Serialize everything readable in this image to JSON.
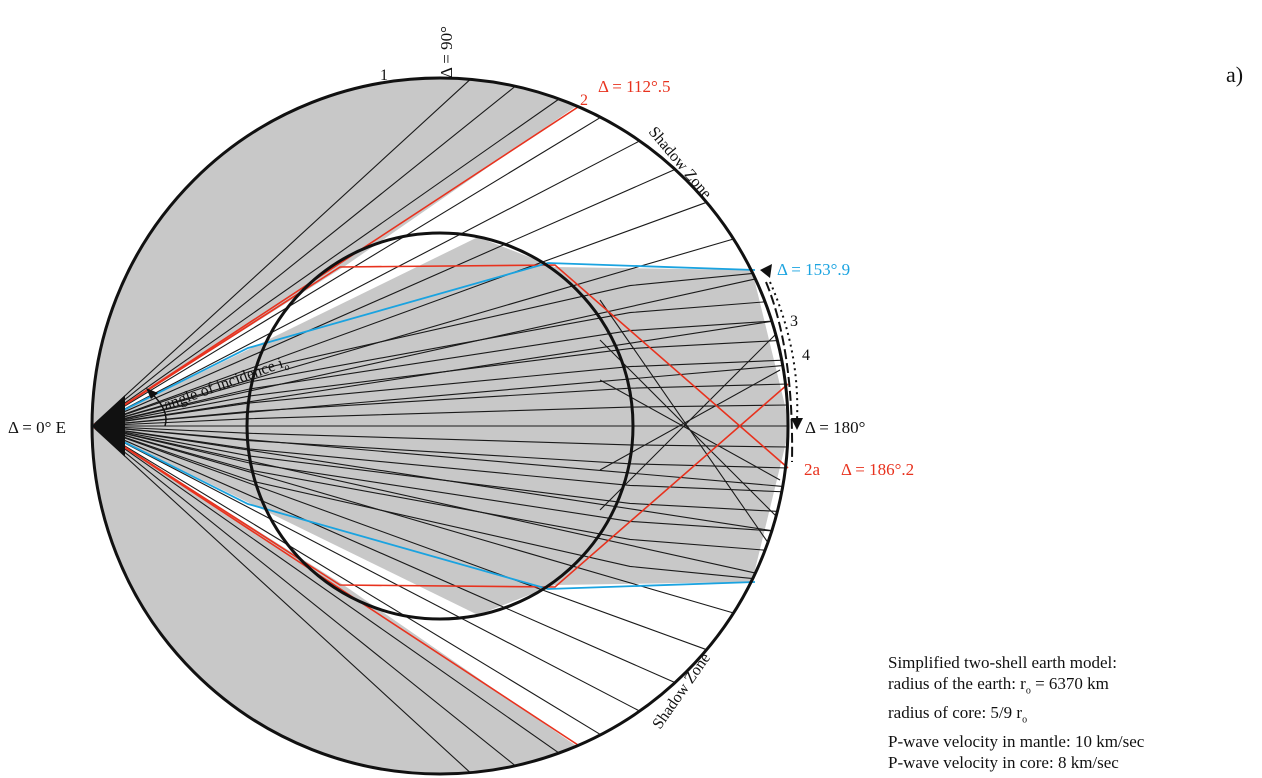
{
  "figure_letter": "a)",
  "labels": {
    "delta_0": "Δ = 0° E",
    "delta_90": "Δ = 90°",
    "delta_112": "Δ = 112°.5",
    "delta_153": "Δ = 153°.9",
    "delta_180": "Δ = 180°",
    "delta_186": "Δ = 186°.2",
    "ray_1": "1",
    "ray_2": "2",
    "ray_2a": "2a",
    "ray_3": "3",
    "ray_4": "4",
    "shadow_zone_top": "Shadow Zone",
    "shadow_zone_bottom": "Shadow Zone",
    "angle_of_incidence": "angle of incidence",
    "angle_subscript": "i",
    "angle_subscript_o": "o"
  },
  "legend": {
    "title": "Simplified two-shell earth model:",
    "line1_prefix": "radius of the earth: r",
    "line1_sub": "o",
    "line1_suffix": " = 6370 km",
    "line2_prefix": "radius of core: 5/9 r",
    "line2_sub": "o",
    "line3": "P-wave velocity in mantle: 10 km/sec",
    "line4": "P-wave velocity in core: 8 km/sec"
  },
  "colors": {
    "shaded": "#c8c8c8",
    "ray": "#1a1a1a",
    "red_ray": "#e8321e",
    "blue_ray": "#1aa3e0"
  }
}
